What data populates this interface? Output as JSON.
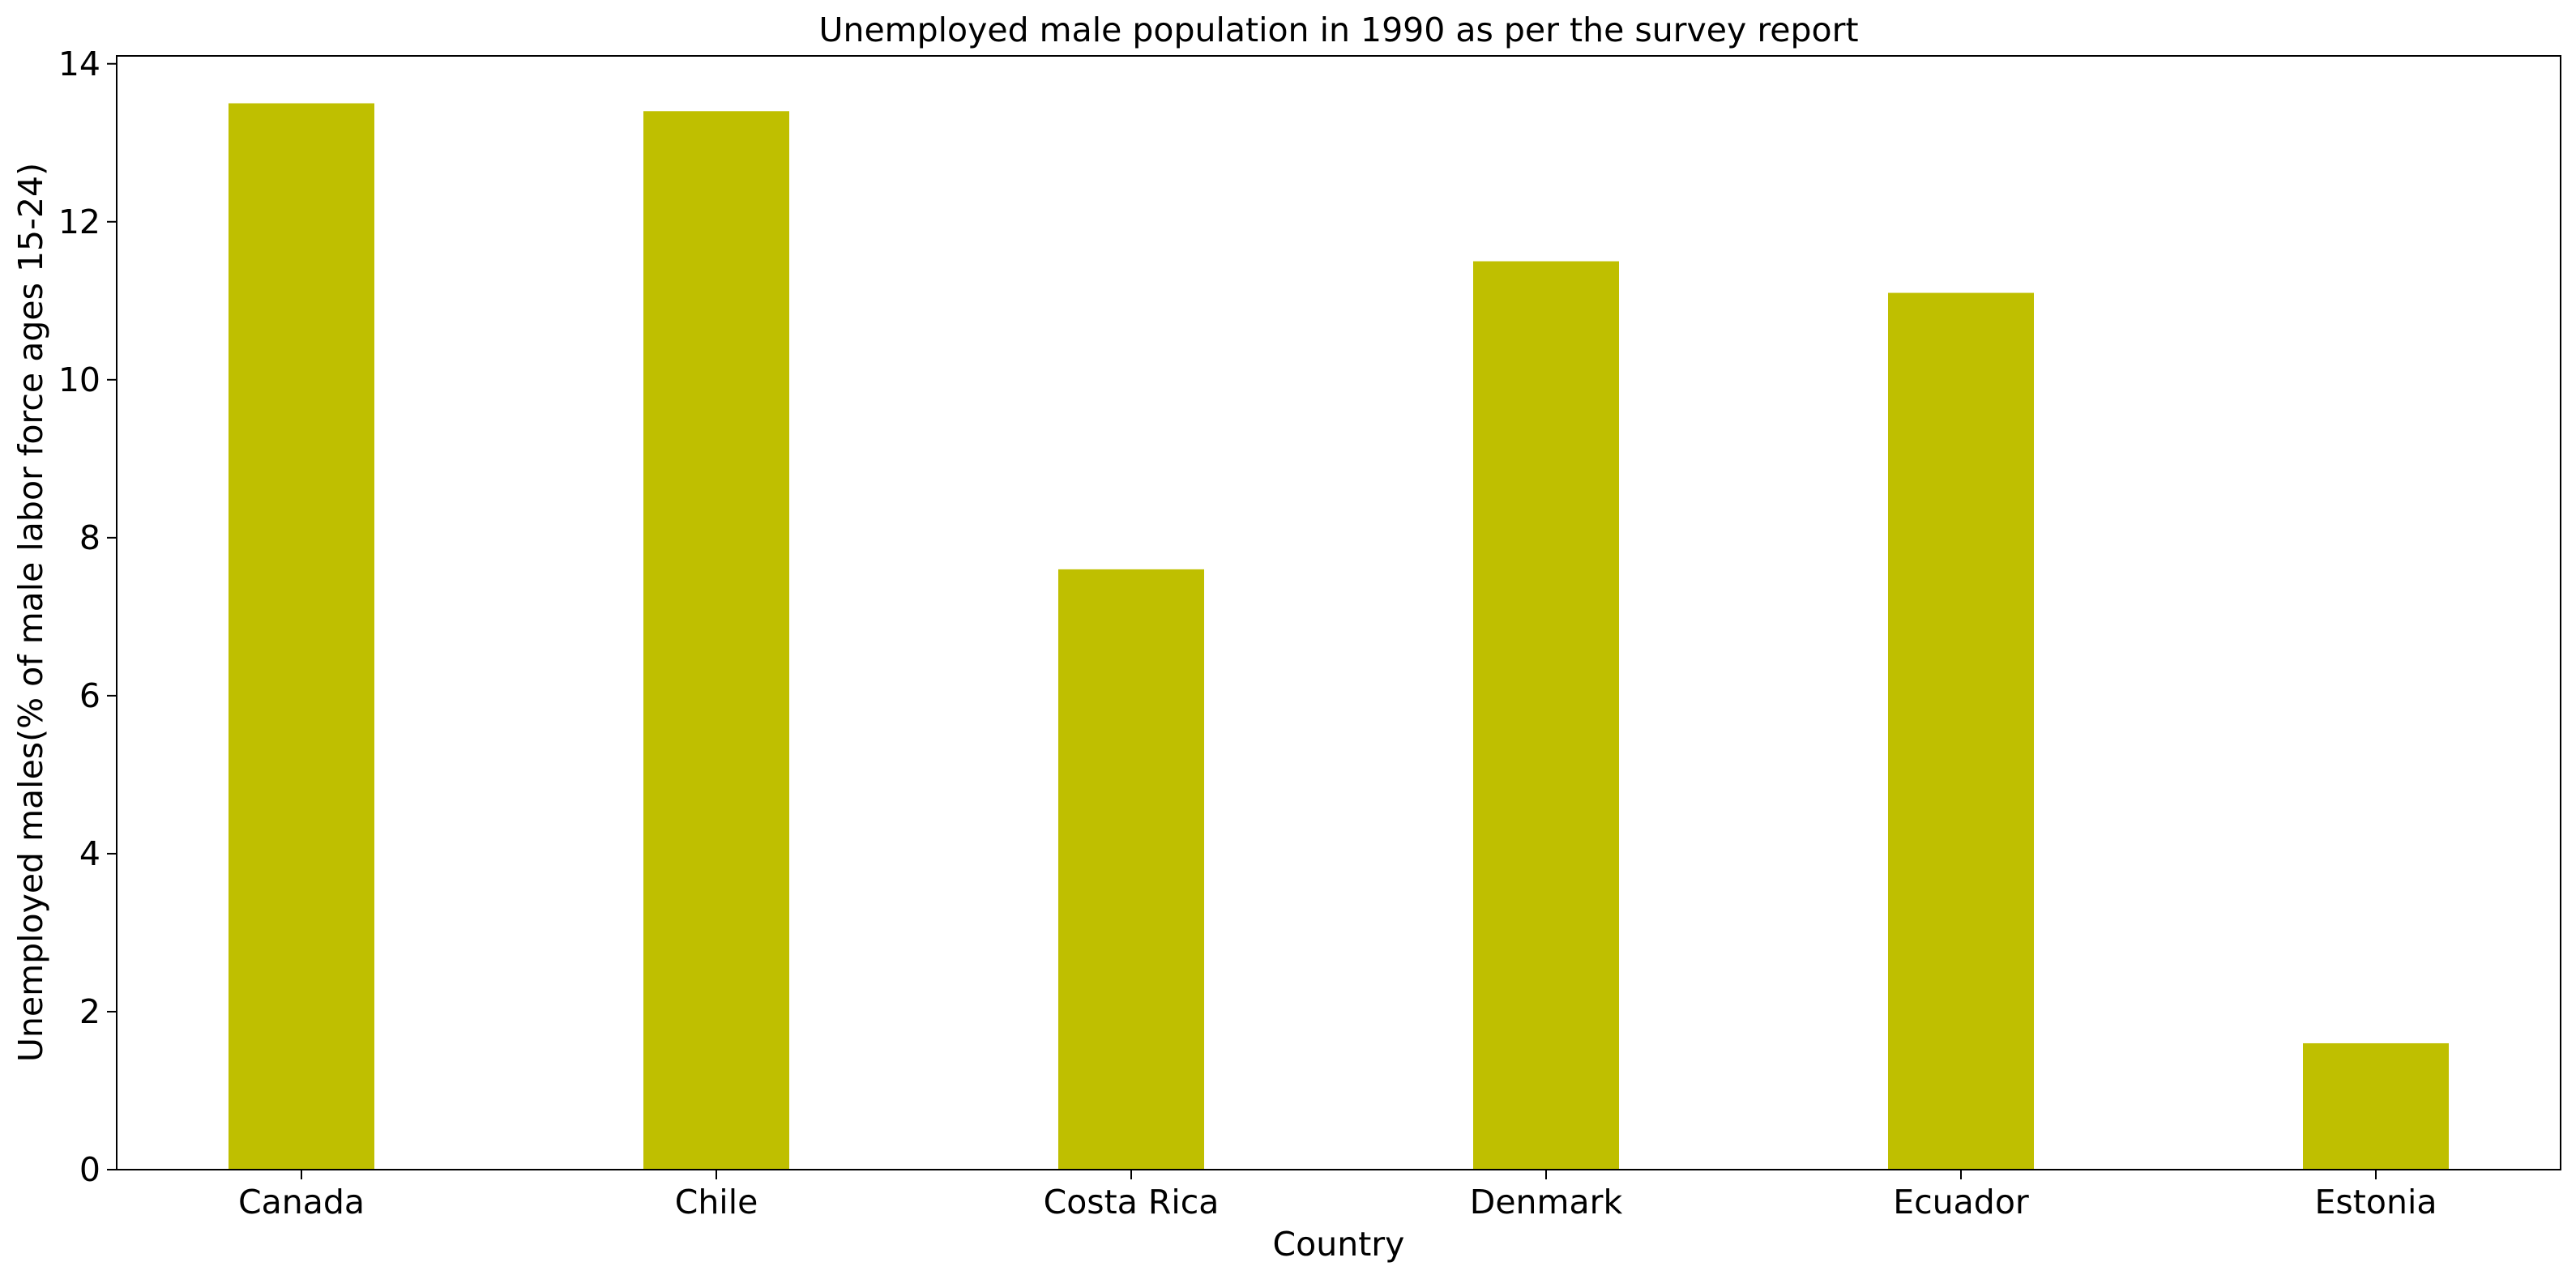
{
  "chart_data": {
    "type": "bar",
    "title": "Unemployed male population in 1990 as per the survey report",
    "xlabel": "Country",
    "ylabel": "Unemployed males(% of male labor force ages 15-24)",
    "categories": [
      "Canada",
      "Chile",
      "Costa Rica",
      "Denmark",
      "Ecuador",
      "Estonia"
    ],
    "values": [
      13.5,
      13.4,
      7.6,
      11.5,
      11.1,
      1.6
    ],
    "ylim": [
      0,
      14.1
    ],
    "yticks": [
      "0",
      "2",
      "4",
      "6",
      "8",
      "10",
      "12",
      "14"
    ],
    "grid": false,
    "legend": "none",
    "bar_color": "#bfbf00"
  }
}
